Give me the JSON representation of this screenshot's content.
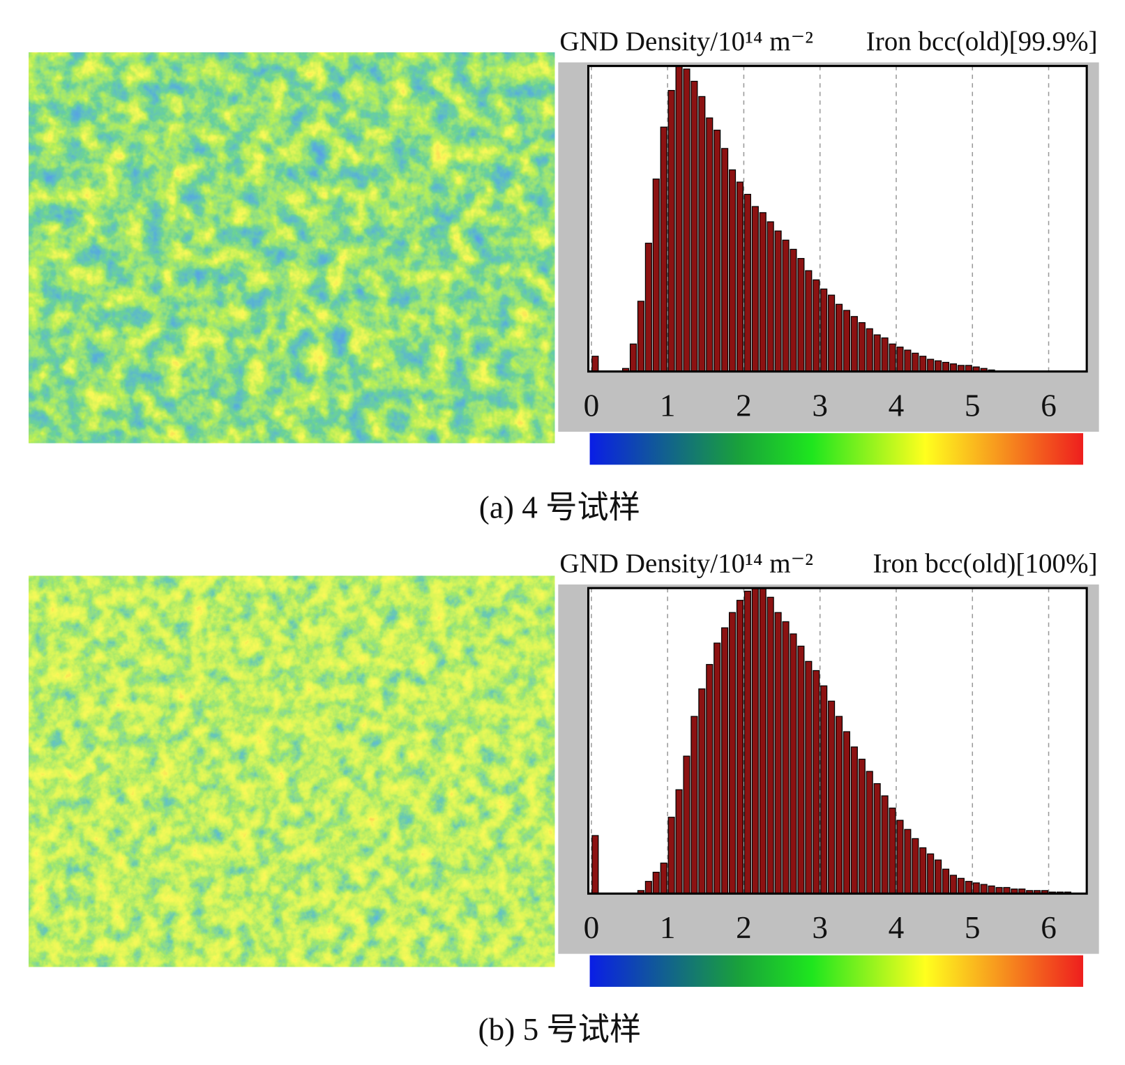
{
  "chart_data": [
    {
      "type": "histogram",
      "title": "GND Density/10¹⁴ m⁻²",
      "annotation": "Iron bcc(old)[99.9%]",
      "caption": "(a) 4 号试样",
      "bins": [
        0,
        0.1,
        0.2,
        0.3,
        0.4,
        0.5,
        0.6,
        0.7,
        0.8,
        0.9,
        1,
        1.1,
        1.2,
        1.3,
        1.4,
        1.5,
        1.6,
        1.7,
        1.8,
        1.9,
        2,
        2.1,
        2.2,
        2.3,
        2.4,
        2.5,
        2.6,
        2.7,
        2.8,
        2.9,
        3,
        3.1,
        3.2,
        3.3,
        3.4,
        3.5,
        3.6,
        3.7,
        3.8,
        3.9,
        4,
        4.1,
        4.2,
        4.3,
        4.4,
        4.5,
        4.6,
        4.7,
        4.8,
        4.9,
        5,
        5.1,
        5.2,
        5.3,
        5.4,
        5.5,
        5.6,
        5.7,
        5.8,
        5.9,
        6,
        6.1,
        6.2,
        6.3,
        6.4,
        6.5
      ],
      "values": [
        5,
        0,
        0,
        0,
        1,
        9,
        23,
        42,
        63,
        80,
        92,
        100,
        99,
        95,
        90,
        83,
        79,
        73,
        66,
        62,
        58,
        54,
        52,
        49,
        46,
        43,
        40,
        37,
        33,
        30,
        27,
        25,
        22,
        20,
        18,
        16,
        14,
        12,
        11,
        9,
        8,
        7,
        6,
        5,
        4,
        3.5,
        3,
        2.5,
        2,
        2,
        1.5,
        1,
        0.5,
        0,
        0,
        0,
        0,
        0,
        0,
        0,
        0,
        0,
        0,
        0,
        0
      ],
      "color": "#8c1212",
      "xlim": [
        -0.04,
        6.5
      ],
      "xticks": [
        0,
        1,
        2,
        3,
        4,
        5,
        6
      ],
      "ylim": [
        0,
        100
      ],
      "grid": true
    },
    {
      "type": "histogram",
      "title": "GND Density/10¹⁴ m⁻²",
      "annotation": "Iron bcc(old)[100%]",
      "caption": "(b) 5 号试样",
      "bins": [
        0,
        0.1,
        0.2,
        0.3,
        0.4,
        0.5,
        0.6,
        0.7,
        0.8,
        0.9,
        1,
        1.1,
        1.2,
        1.3,
        1.4,
        1.5,
        1.6,
        1.7,
        1.8,
        1.9,
        2,
        2.1,
        2.2,
        2.3,
        2.4,
        2.5,
        2.6,
        2.7,
        2.8,
        2.9,
        3,
        3.1,
        3.2,
        3.3,
        3.4,
        3.5,
        3.6,
        3.7,
        3.8,
        3.9,
        4,
        4.1,
        4.2,
        4.3,
        4.4,
        4.5,
        4.6,
        4.7,
        4.8,
        4.9,
        5,
        5.1,
        5.2,
        5.3,
        5.4,
        5.5,
        5.6,
        5.7,
        5.8,
        5.9,
        6,
        6.1,
        6.2,
        6.3,
        6.4,
        6.5
      ],
      "values": [
        19,
        0,
        0,
        0,
        0,
        0,
        1,
        4,
        7,
        10,
        25,
        34,
        45,
        58,
        67,
        75,
        82,
        87,
        92,
        96,
        99,
        100,
        100,
        97,
        92,
        89,
        85,
        81,
        76,
        73,
        68,
        63,
        58,
        53,
        48,
        44,
        40,
        36,
        32,
        28,
        24,
        21,
        18,
        15,
        13,
        11,
        8,
        6,
        5,
        4,
        3.5,
        3,
        2.5,
        2,
        2,
        1.5,
        1.5,
        1,
        1,
        1,
        0.5,
        0.5,
        0.5,
        0,
        0
      ],
      "color": "#8c1212",
      "xlim": [
        -0.04,
        6.5
      ],
      "xticks": [
        0,
        1,
        2,
        3,
        4,
        5,
        6
      ],
      "ylim": [
        0,
        100
      ],
      "grid": true
    }
  ]
}
